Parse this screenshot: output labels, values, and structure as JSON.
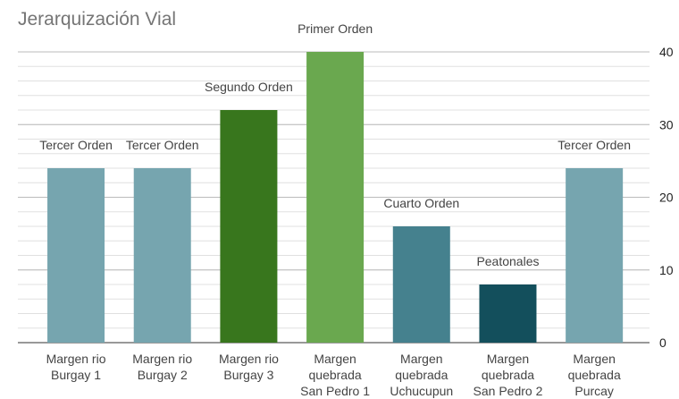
{
  "chart_data": {
    "type": "bar",
    "title": "Jerarquización Vial",
    "categories": [
      "Margen rio\nBurgay 1",
      "Margen rio\nBurgay 2",
      "Margen rio\nBurgay 3",
      "Margen\nquebrada\nSan Pedro 1",
      "Margen\nquebrada\nUchucupun",
      "Margen\nquebrada\nSan Pedro 2",
      "Margen\nquebrada\nPurcay"
    ],
    "values": [
      24,
      24,
      32,
      40,
      16,
      8,
      24
    ],
    "bar_labels": [
      "Tercer Orden",
      "Tercer Orden",
      "Segundo Orden",
      "Primer Orden",
      "Cuarto Orden",
      "Peatonales",
      "Tercer Orden"
    ],
    "colors": [
      "#76a5af",
      "#76a5af",
      "#38761d",
      "#6aa84f",
      "#45818e",
      "#134f5c",
      "#76a5af"
    ],
    "ylim": [
      0,
      40
    ],
    "yticks": [
      0,
      10,
      20,
      30,
      40
    ],
    "y_axis_side": "right",
    "grid": true,
    "minor_grid_step": 2
  }
}
